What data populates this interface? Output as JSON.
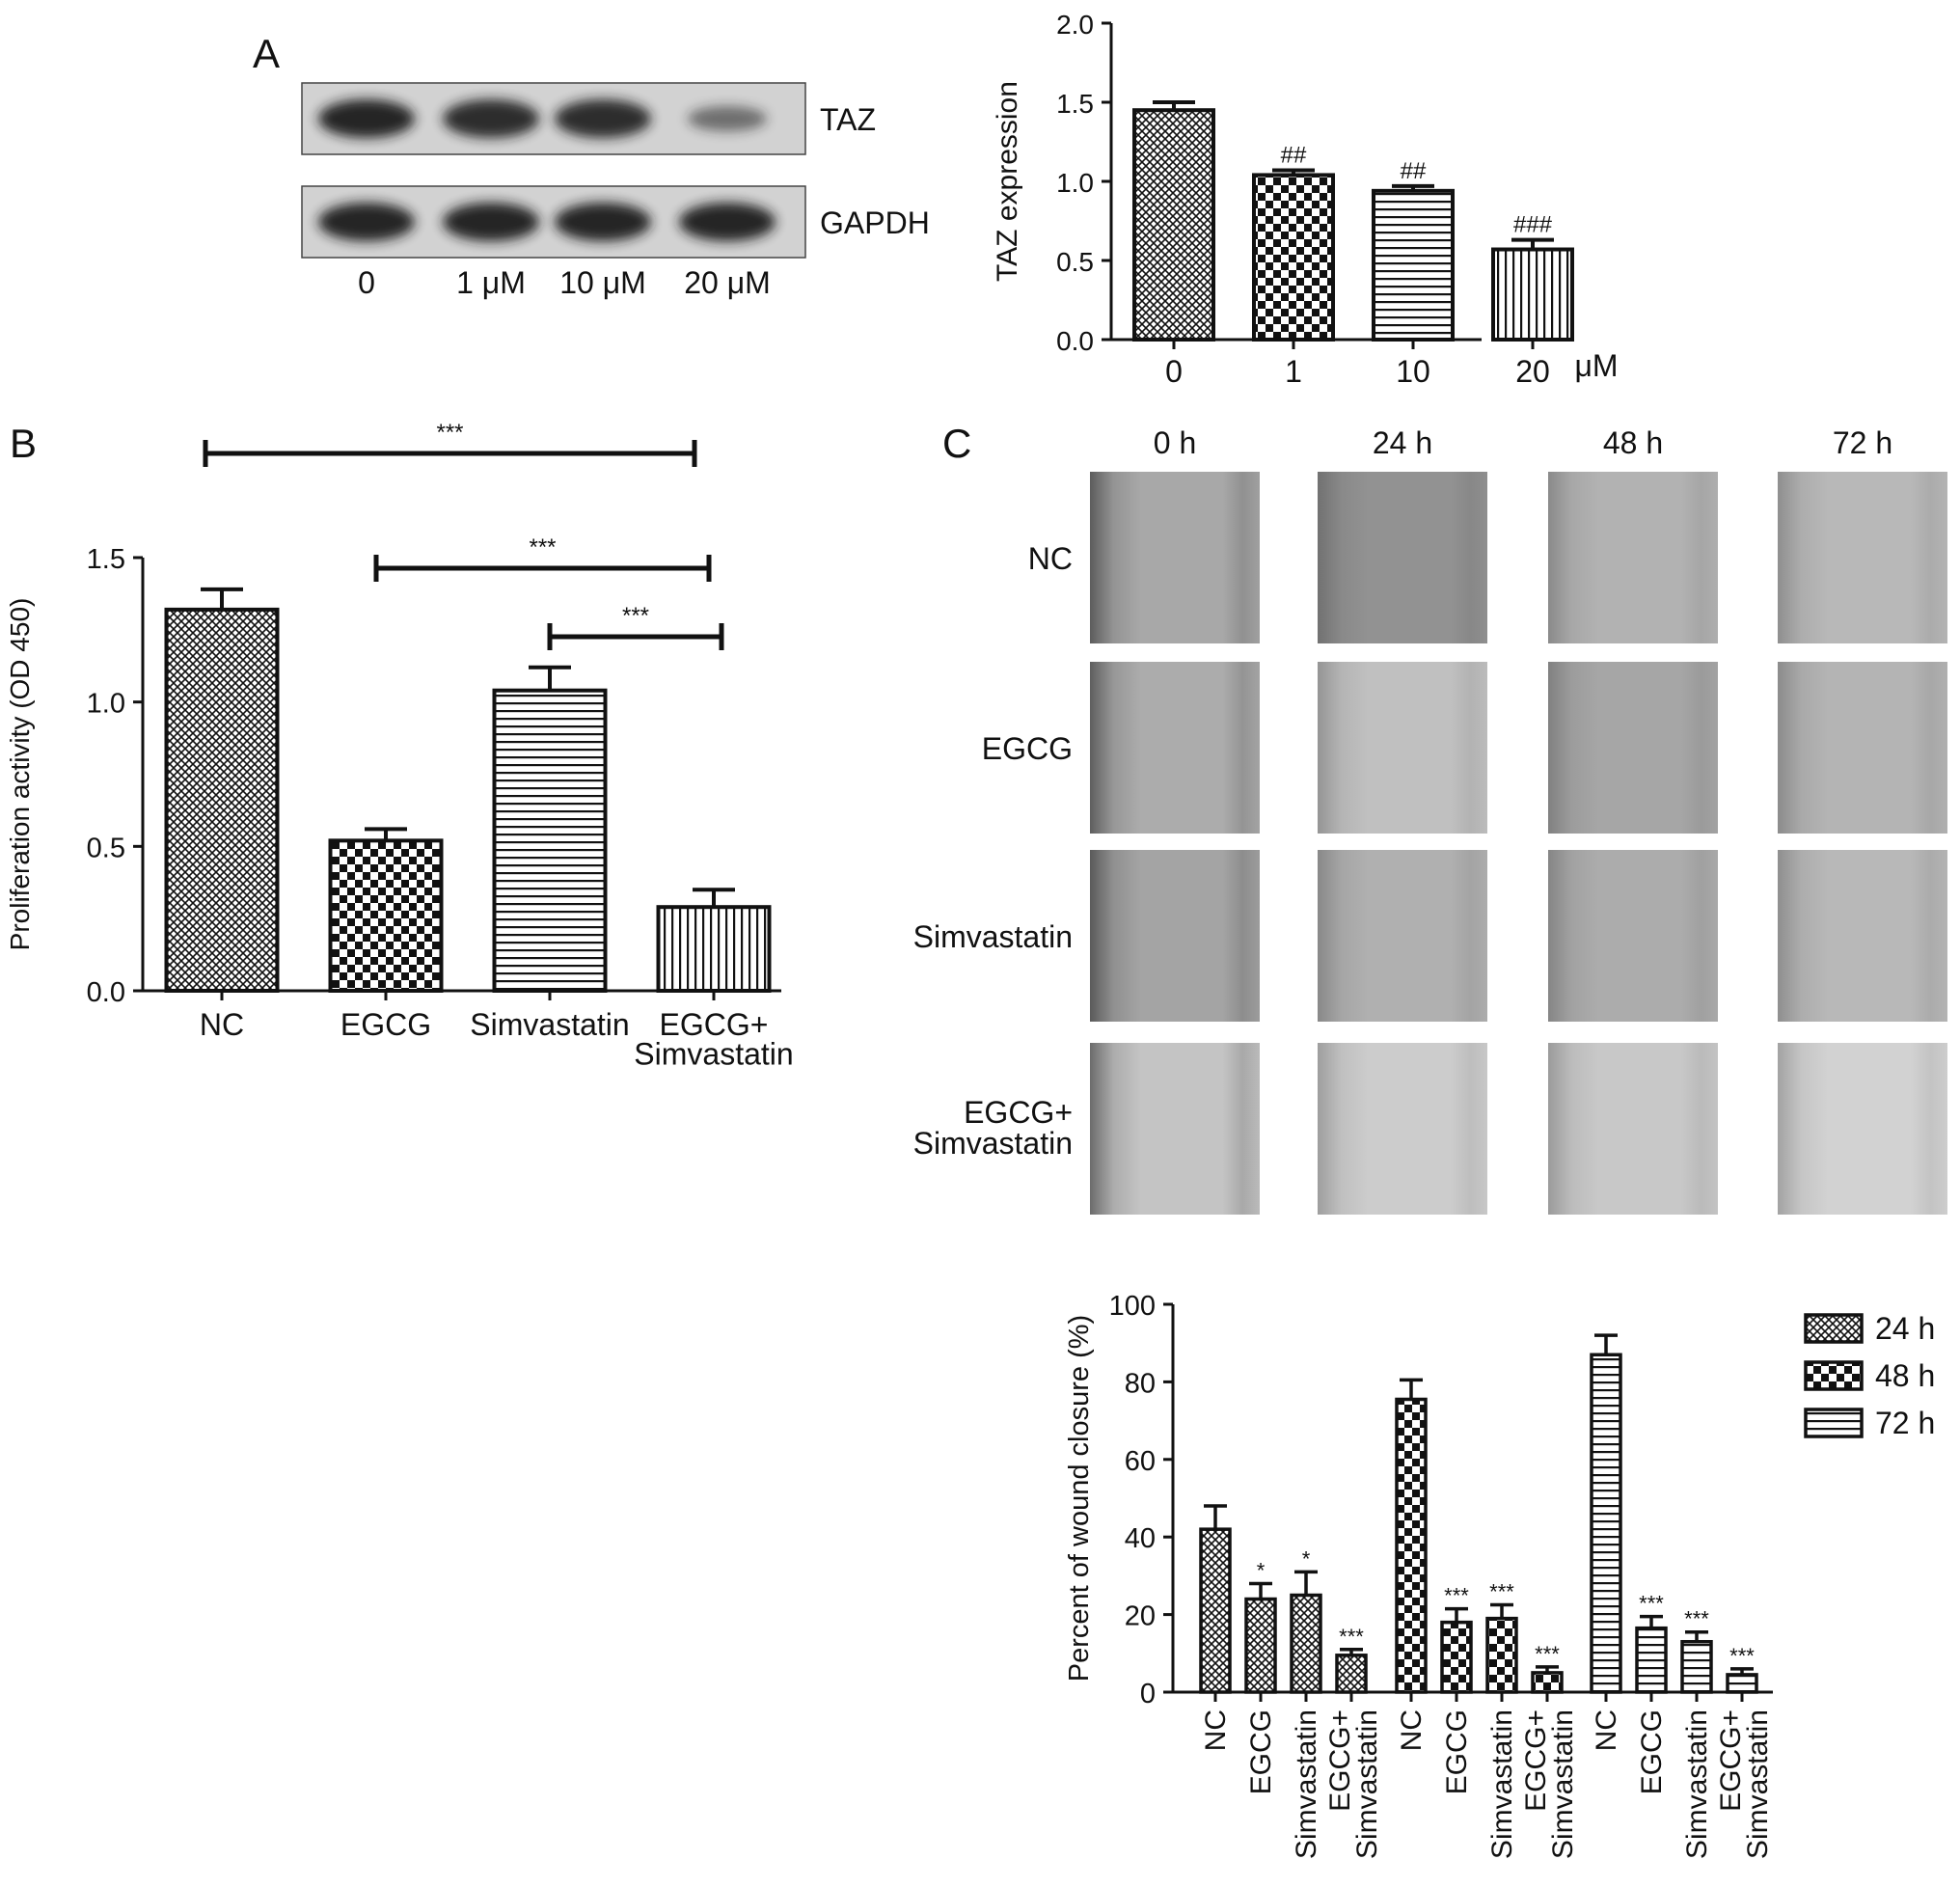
{
  "colors": {
    "ink": "#111111",
    "bar_fill": "#ffffff",
    "blot_bg": "#d2d2d2",
    "band": "#1a1a1a"
  },
  "panels": {
    "A": {
      "label": "A",
      "blot": {
        "rows": [
          {
            "name": "TAZ",
            "band_intensity": [
              0.95,
              0.9,
              0.9,
              0.55
            ]
          },
          {
            "name": "GAPDH",
            "band_intensity": [
              0.95,
              0.95,
              0.95,
              0.95
            ]
          }
        ],
        "lanes": [
          "0",
          "1 μM",
          "10 μM",
          "20 μM"
        ]
      }
    },
    "B": {
      "label": "B"
    },
    "C": {
      "label": "C",
      "timepoints": [
        "0 h",
        "24 h",
        "48 h",
        "72 h"
      ],
      "groups": [
        "NC",
        "EGCG",
        "Simvastatin",
        "EGCG+\nSimvastatin"
      ],
      "micrograph_tones": [
        [
          "#a8a8a8",
          "#929292",
          "#b2b2b2",
          "#b8b8b8"
        ],
        [
          "#acacac",
          "#c0c0c0",
          "#a6a6a6",
          "#b4b4b4"
        ],
        [
          "#a4a4a4",
          "#b0b0b0",
          "#acacac",
          "#b8b8b8"
        ],
        [
          "#c4c4c4",
          "#cccccc",
          "#c8c8c8",
          "#d2d2d2"
        ]
      ]
    }
  },
  "chart_data": [
    {
      "id": "taz",
      "type": "bar",
      "categories": [
        "0",
        "1",
        "10",
        "20"
      ],
      "unit_label": "μM",
      "values": [
        1.45,
        1.04,
        0.94,
        0.57
      ],
      "errors": [
        0.05,
        0.03,
        0.03,
        0.06
      ],
      "annotations": [
        "",
        "##",
        "##",
        "###"
      ],
      "patterns": [
        "grid",
        "checker",
        "hlines",
        "vlines"
      ],
      "xlabel": "",
      "ylabel": "TAZ expression",
      "ylim": [
        0,
        2.0
      ],
      "ticks": [
        "0.0",
        "0.5",
        "1.0",
        "1.5",
        "2.0"
      ],
      "grid": false
    },
    {
      "id": "prolif",
      "type": "bar",
      "categories": [
        "NC",
        "EGCG",
        "Simvastatin",
        "EGCG+\nSimvastatin"
      ],
      "values": [
        1.32,
        0.52,
        1.04,
        0.29
      ],
      "errors": [
        0.07,
        0.04,
        0.08,
        0.06
      ],
      "patterns": [
        "grid",
        "checker",
        "hlines",
        "vlines"
      ],
      "xlabel": "",
      "ylabel": "Proliferation activity (OD 450)",
      "ylim": [
        0,
        1.5
      ],
      "ticks": [
        "0.0",
        "0.5",
        "1.0",
        "1.5"
      ],
      "grid": false,
      "brackets": [
        {
          "from": 0,
          "to": 3,
          "label": "***"
        },
        {
          "from": 1,
          "to": 3,
          "label": "***"
        },
        {
          "from": 2,
          "to": 3,
          "label": "***"
        }
      ]
    },
    {
      "id": "wound",
      "type": "bar",
      "groups": [
        "NC",
        "EGCG",
        "Simvastatin",
        "EGCG+\nSimvastatin"
      ],
      "series": [
        {
          "name": "24 h",
          "pattern": "grid",
          "values": [
            42,
            24,
            25,
            9.5
          ],
          "errors": [
            6,
            4,
            6,
            1.5
          ],
          "annotations": [
            "",
            "*",
            "*",
            "***"
          ]
        },
        {
          "name": "48 h",
          "pattern": "checker",
          "values": [
            75.5,
            18,
            19,
            5
          ],
          "errors": [
            5,
            3.5,
            3.5,
            1.5
          ],
          "annotations": [
            "",
            "***",
            "***",
            "***"
          ]
        },
        {
          "name": "72 h",
          "pattern": "hlines",
          "values": [
            87,
            16.5,
            13,
            4.5
          ],
          "errors": [
            5,
            3,
            2.5,
            1.5
          ],
          "annotations": [
            "",
            "***",
            "***",
            "***"
          ]
        }
      ],
      "xlabel": "",
      "ylabel": "Percent of wound closure (%)",
      "ylim": [
        0,
        100
      ],
      "ticks": [
        "0",
        "20",
        "40",
        "60",
        "80",
        "100"
      ],
      "legend": "right",
      "grid": false
    }
  ]
}
